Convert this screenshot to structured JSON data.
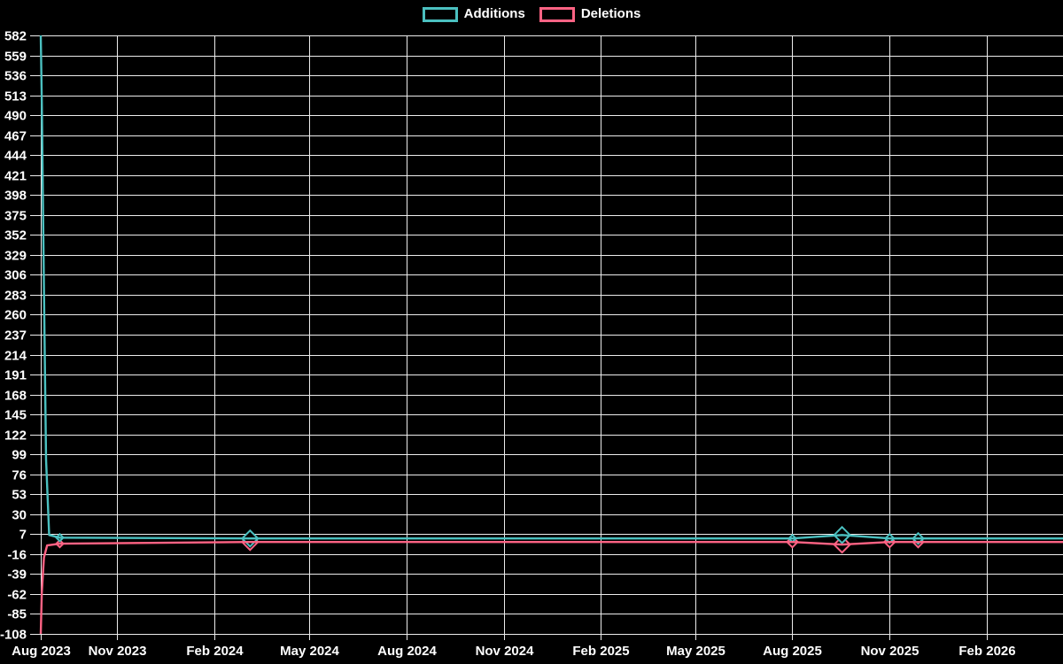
{
  "page": {
    "background": "#000000",
    "grid_color": "#ececec",
    "text_color": "#ffffff"
  },
  "legend": {
    "items": [
      {
        "id": "additions",
        "label": "Additions",
        "color": "#4bc0c0"
      },
      {
        "id": "deletions",
        "label": "Deletions",
        "color": "#ff6384"
      }
    ]
  },
  "chart_data": {
    "type": "line",
    "title": "",
    "xlabel": "",
    "ylabel": "",
    "legend_position": "top-center",
    "grid": {
      "show": true,
      "color": "#ececec"
    },
    "x_axis": {
      "type": "time",
      "min": "2023-08-21",
      "max": "2026-04-14",
      "ticks": [
        {
          "label": "Aug 2023",
          "date": "2023-08-21"
        },
        {
          "label": "Nov 2023",
          "date": "2023-11-01"
        },
        {
          "label": "Feb 2024",
          "date": "2024-02-01"
        },
        {
          "label": "May 2024",
          "date": "2024-05-01"
        },
        {
          "label": "Aug 2024",
          "date": "2024-08-01"
        },
        {
          "label": "Nov 2024",
          "date": "2024-11-01"
        },
        {
          "label": "Feb 2025",
          "date": "2025-02-01"
        },
        {
          "label": "May 2025",
          "date": "2025-05-01"
        },
        {
          "label": "Aug 2025",
          "date": "2025-08-01"
        },
        {
          "label": "Nov 2025",
          "date": "2025-11-01"
        },
        {
          "label": "Feb 2026",
          "date": "2026-02-01"
        }
      ]
    },
    "y_axis": {
      "min": -108,
      "max": 582,
      "step": 23,
      "ticks": [
        582,
        559,
        536,
        513,
        490,
        467,
        444,
        421,
        398,
        375,
        352,
        329,
        306,
        283,
        260,
        237,
        214,
        191,
        168,
        145,
        122,
        99,
        76,
        53,
        30,
        7,
        -16,
        -39,
        -62,
        -85,
        -108
      ]
    },
    "series": [
      {
        "name": "Additions",
        "color": "#4bc0c0",
        "points": [
          {
            "date": "2023-08-21",
            "value": 582,
            "marker": 0
          },
          {
            "date": "2023-08-22",
            "value": 505,
            "marker": 0
          },
          {
            "date": "2023-08-24",
            "value": 292,
            "marker": 0
          },
          {
            "date": "2023-08-26",
            "value": 93,
            "marker": 0
          },
          {
            "date": "2023-08-29",
            "value": 6,
            "marker": 0
          },
          {
            "date": "2023-09-08",
            "value": 3,
            "marker": 4
          },
          {
            "date": "2024-03-06",
            "value": 2,
            "marker": 9
          },
          {
            "date": "2025-08-01",
            "value": 2,
            "marker": 4
          },
          {
            "date": "2025-09-17",
            "value": 6,
            "marker": 9
          },
          {
            "date": "2025-11-01",
            "value": 2,
            "marker": 5
          },
          {
            "date": "2025-11-28",
            "value": 2,
            "marker": 6
          },
          {
            "date": "2026-04-14",
            "value": 2,
            "marker": 0
          }
        ]
      },
      {
        "name": "Deletions",
        "color": "#ff6384",
        "points": [
          {
            "date": "2023-08-21",
            "value": -108,
            "marker": 0
          },
          {
            "date": "2023-08-22",
            "value": -60,
            "marker": 0
          },
          {
            "date": "2023-08-24",
            "value": -20,
            "marker": 0
          },
          {
            "date": "2023-08-27",
            "value": -6,
            "marker": 0
          },
          {
            "date": "2023-09-08",
            "value": -4,
            "marker": 4
          },
          {
            "date": "2024-03-06",
            "value": -2,
            "marker": 9
          },
          {
            "date": "2025-08-01",
            "value": -2,
            "marker": 6
          },
          {
            "date": "2025-09-17",
            "value": -5,
            "marker": 9
          },
          {
            "date": "2025-11-01",
            "value": -2,
            "marker": 6
          },
          {
            "date": "2025-11-28",
            "value": -2,
            "marker": 6
          },
          {
            "date": "2026-04-14",
            "value": -2,
            "marker": 0
          }
        ]
      }
    ]
  }
}
